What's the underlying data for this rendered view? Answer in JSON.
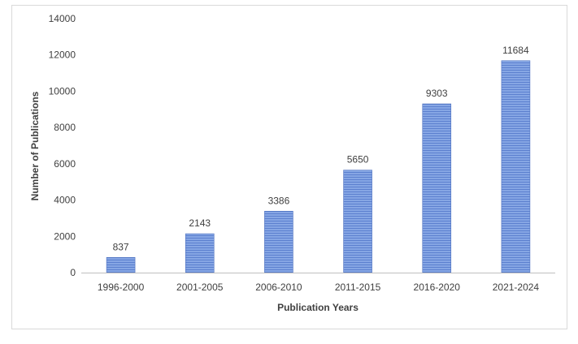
{
  "chart_data": {
    "type": "bar",
    "title": "",
    "xlabel": "Publication Years",
    "ylabel": "Number of Publications",
    "categories": [
      "1996-2000",
      "2001-2005",
      "2006-2010",
      "2011-2015",
      "2016-2020",
      "2021-2024"
    ],
    "values": [
      837,
      2143,
      3386,
      5650,
      9303,
      11684
    ],
    "data_labels": [
      "837",
      "2143",
      "3386",
      "5650",
      "9303",
      "11684"
    ],
    "yticks": [
      "0",
      "2000",
      "4000",
      "6000",
      "8000",
      "10000",
      "12000",
      "14000"
    ],
    "ylim": [
      0,
      14000
    ],
    "grid": false,
    "legend": "none",
    "bar_color": "#7e9fe0",
    "bar_stripe_color": "#5f84d2"
  }
}
